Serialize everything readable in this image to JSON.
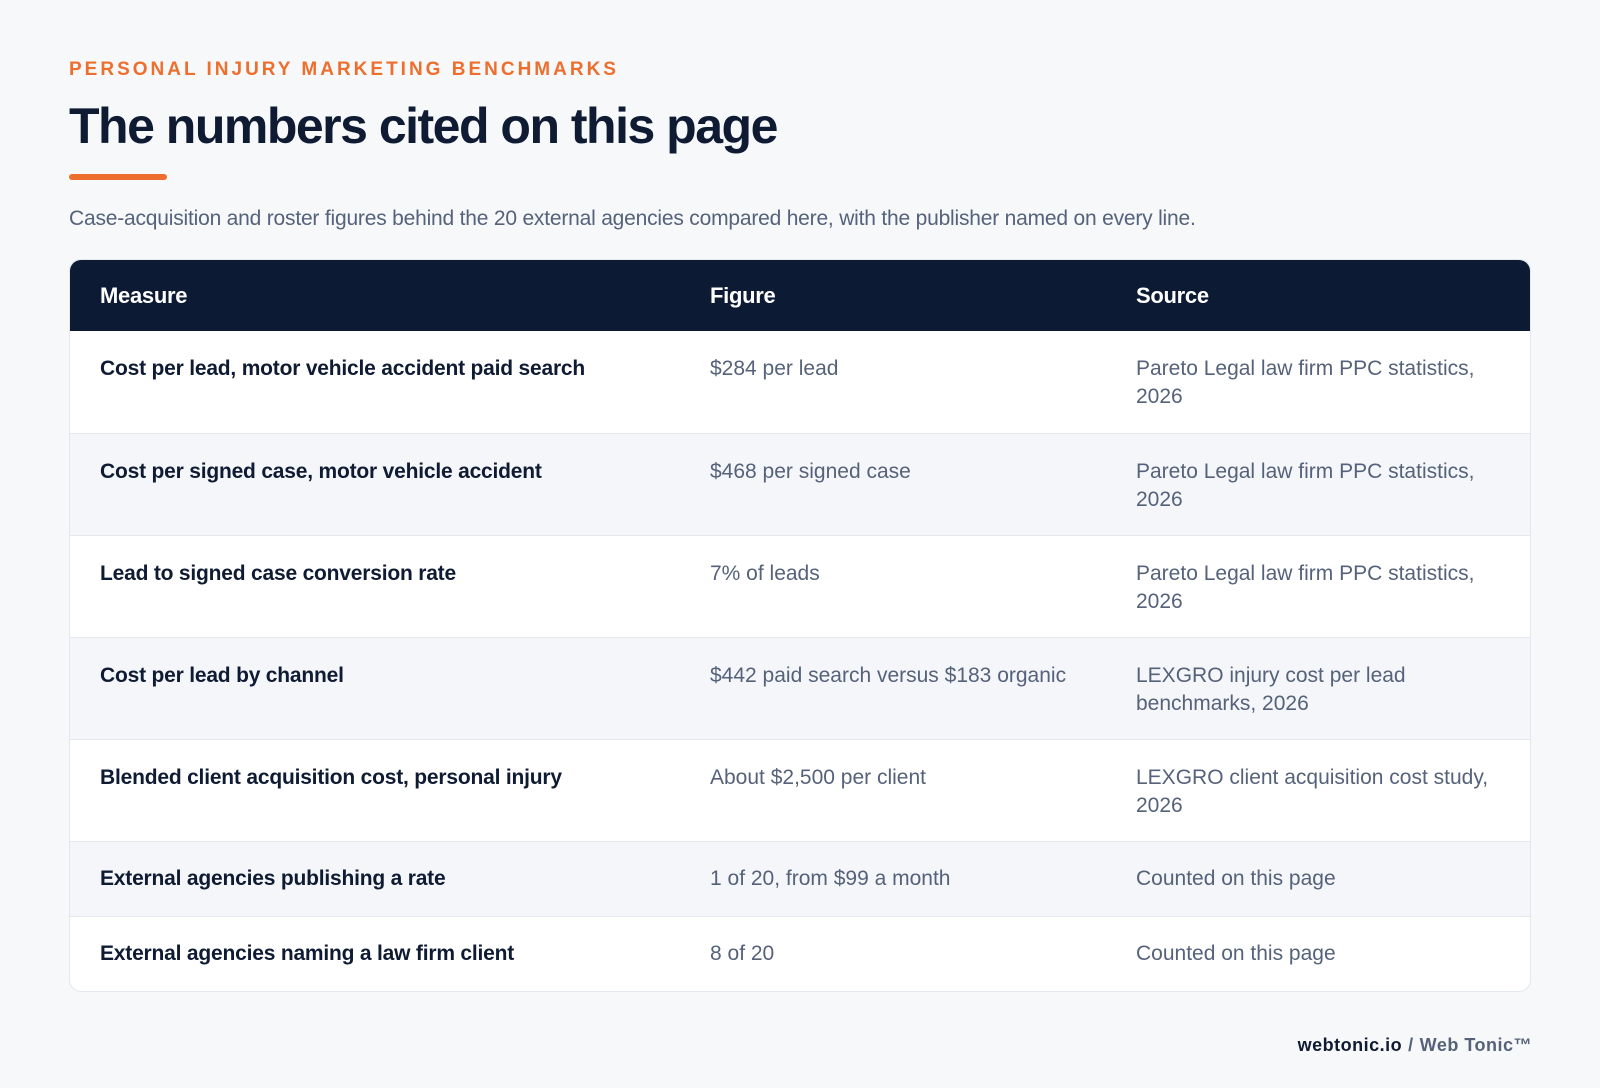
{
  "header": {
    "eyebrow": "PERSONAL INJURY MARKETING BENCHMARKS",
    "title": "The numbers cited on this page",
    "subtitle": "Case-acquisition and roster figures behind the 20 external agencies compared here, with the publisher named on every line."
  },
  "table": {
    "columns": [
      "Measure",
      "Figure",
      "Source"
    ],
    "rows": [
      {
        "measure": "Cost per lead, motor vehicle accident paid search",
        "figure": "$284 per lead",
        "source": "Pareto Legal law firm PPC statistics, 2026"
      },
      {
        "measure": "Cost per signed case, motor vehicle accident",
        "figure": "$468 per signed case",
        "source": "Pareto Legal law firm PPC statistics, 2026"
      },
      {
        "measure": "Lead to signed case conversion rate",
        "figure": "7% of leads",
        "source": "Pareto Legal law firm PPC statistics, 2026"
      },
      {
        "measure": "Cost per lead by channel",
        "figure": "$442 paid search versus $183 organic",
        "source": "LEXGRO injury cost per lead benchmarks, 2026"
      },
      {
        "measure": "Blended client acquisition cost, personal injury",
        "figure": "About $2,500 per client",
        "source": "LEXGRO client acquisition cost study, 2026"
      },
      {
        "measure": "External agencies publishing a rate",
        "figure": "1 of 20, from $99 a month",
        "source": "Counted on this page"
      },
      {
        "measure": "External agencies naming a law firm client",
        "figure": "8 of 20",
        "source": "Counted on this page"
      }
    ]
  },
  "footer": {
    "domain": "webtonic.io",
    "separator": "/",
    "brand": "Web Tonic™"
  },
  "colors": {
    "accent": "#ee6f2d",
    "navy": "#0d1a34",
    "muted_text": "#55627a",
    "background": "#f6f8fa"
  }
}
